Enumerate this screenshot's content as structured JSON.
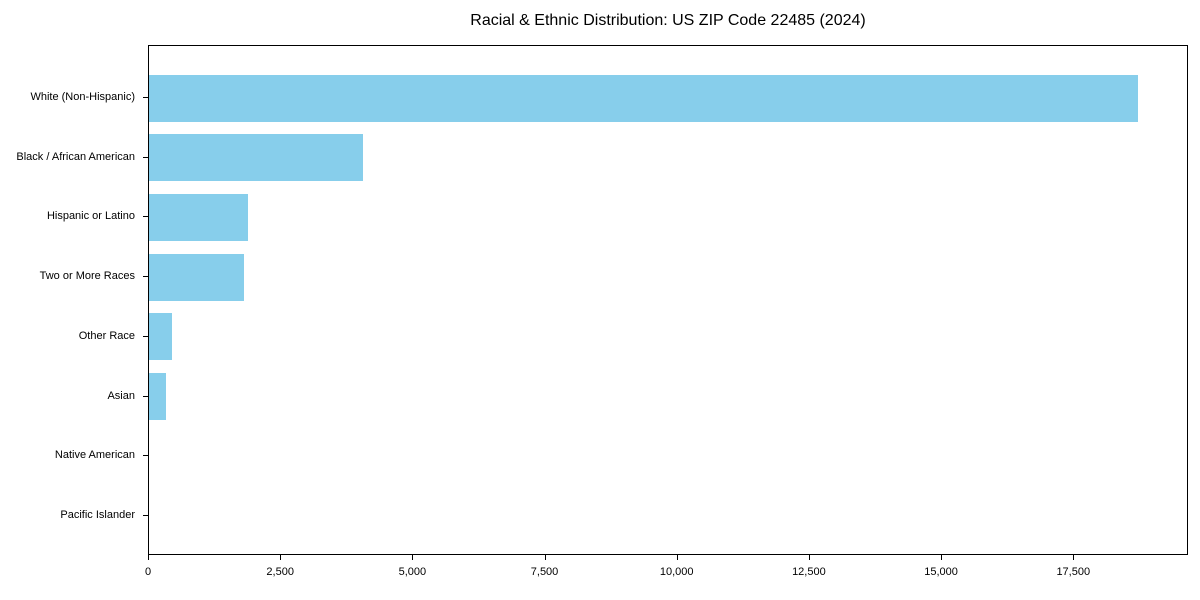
{
  "chart_data": {
    "type": "bar",
    "orientation": "horizontal",
    "title": "Racial & Ethnic Distribution: US ZIP Code 22485 (2024)",
    "categories": [
      "White (Non-Hispanic)",
      "Black / African American",
      "Hispanic or Latino",
      "Two or More Races",
      "Other Race",
      "Asian",
      "Native American",
      "Pacific Islander"
    ],
    "values": [
      18700,
      4050,
      1870,
      1800,
      430,
      330,
      0,
      0
    ],
    "bar_color": "#87CEEB",
    "xlabel": "",
    "ylabel": "",
    "xlim": [
      0,
      19670
    ],
    "xticks": [
      {
        "value": 0,
        "label": "0"
      },
      {
        "value": 2500,
        "label": "2,500"
      },
      {
        "value": 5000,
        "label": "5,000"
      },
      {
        "value": 7500,
        "label": "7,500"
      },
      {
        "value": 10000,
        "label": "10,000"
      },
      {
        "value": 12500,
        "label": "12,500"
      },
      {
        "value": 15000,
        "label": "15,000"
      },
      {
        "value": 17500,
        "label": "17,500"
      }
    ],
    "grid": false,
    "background_color": "#ffffff",
    "text_color": "#000000"
  }
}
